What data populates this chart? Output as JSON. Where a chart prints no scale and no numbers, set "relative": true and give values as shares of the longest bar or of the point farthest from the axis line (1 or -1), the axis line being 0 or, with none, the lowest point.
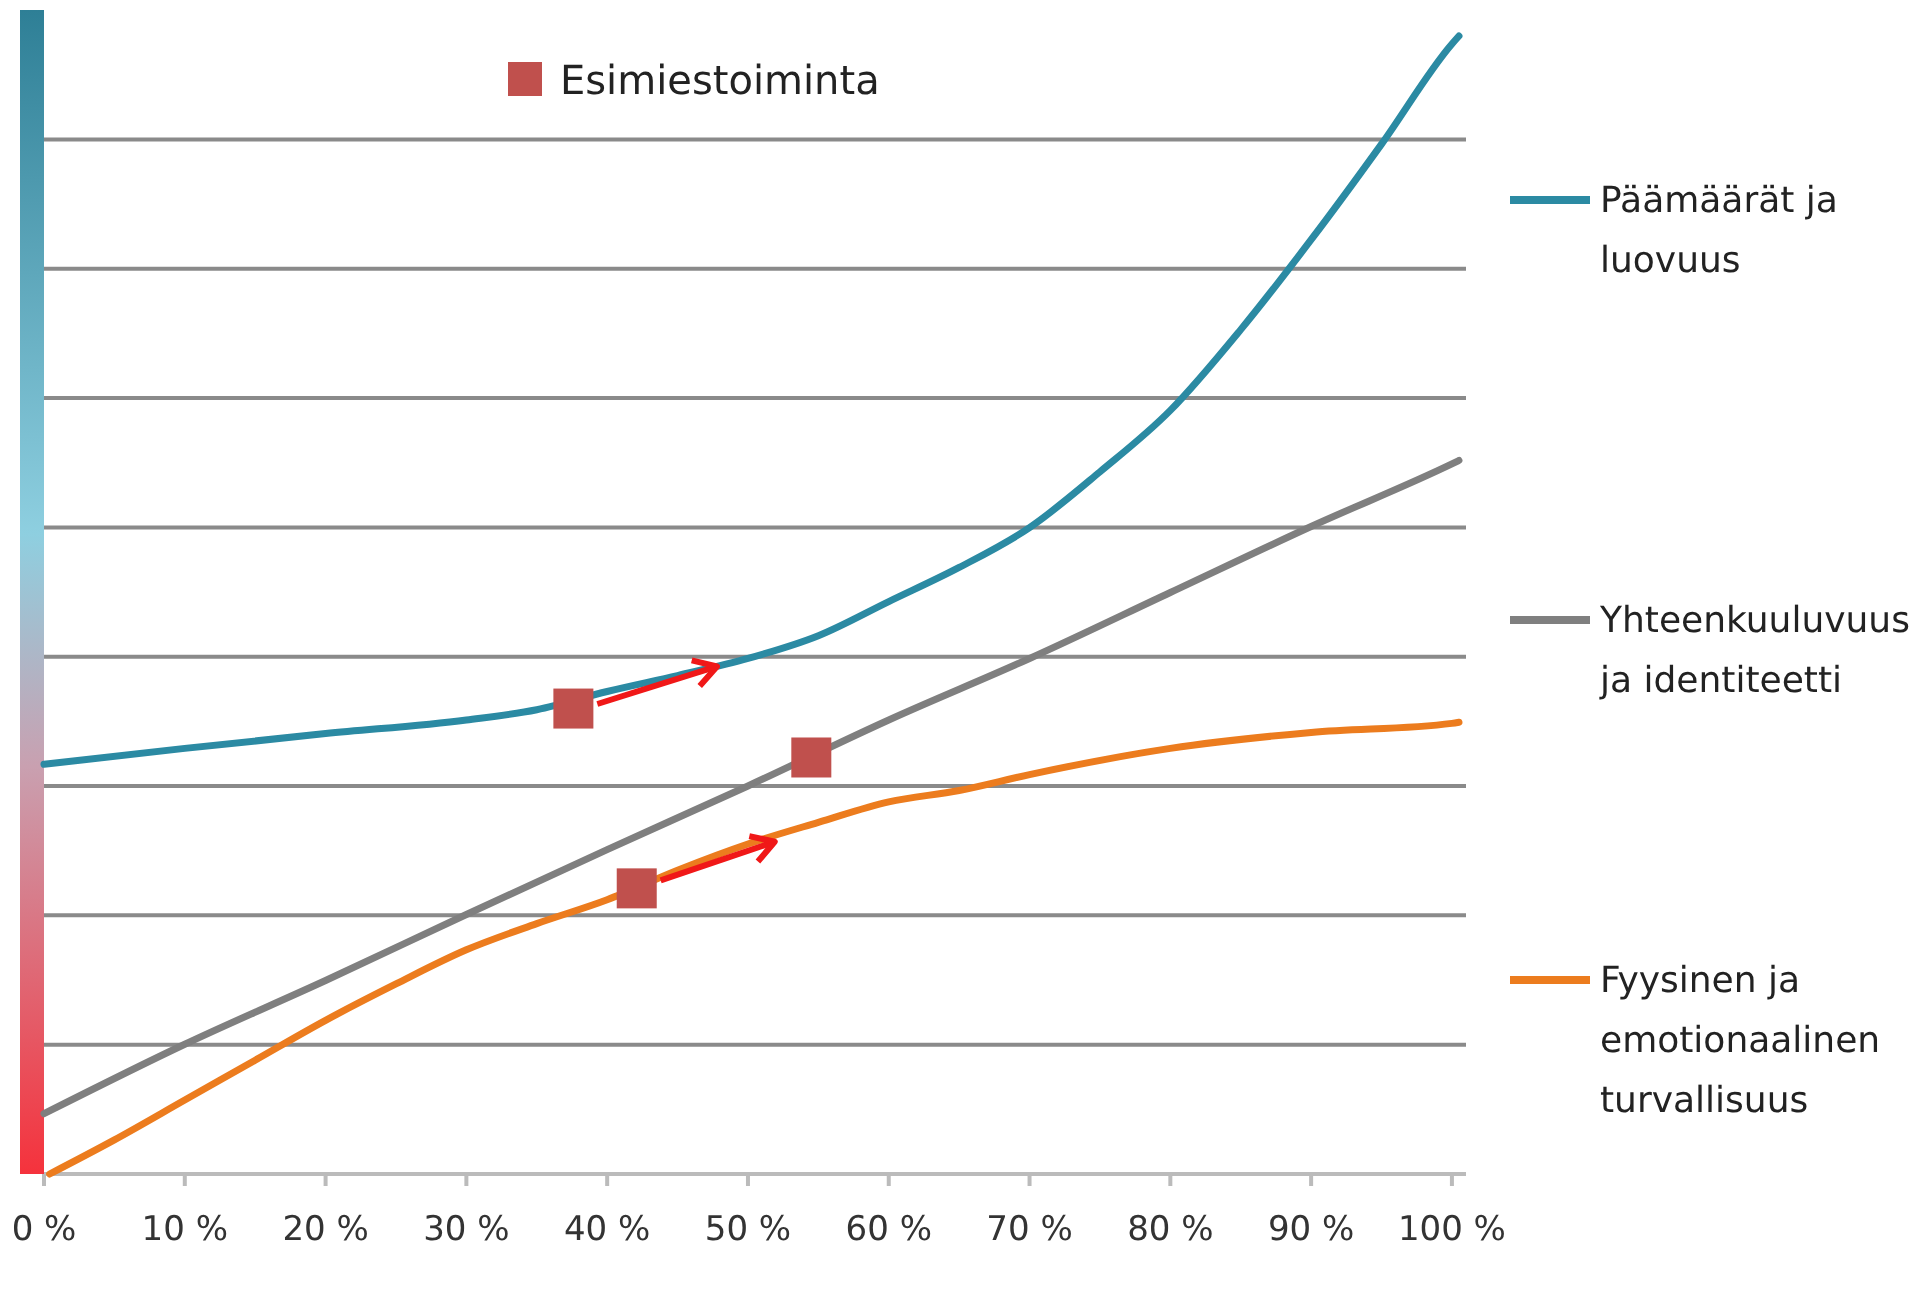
{
  "chart_data": {
    "type": "line",
    "relative": true,
    "grid": "y",
    "legend": "right",
    "marker": "none",
    "line_style": "solid",
    "xlim": [
      0,
      101
    ],
    "xticks": [
      {
        "value": 0,
        "label": "0 %"
      },
      {
        "value": 10,
        "label": "10 %"
      },
      {
        "value": 20,
        "label": "20 %"
      },
      {
        "value": 30,
        "label": "30 %"
      },
      {
        "value": 40,
        "label": "40 %"
      },
      {
        "value": 50,
        "label": "50 %"
      },
      {
        "value": 60,
        "label": "60 %"
      },
      {
        "value": 70,
        "label": "70 %"
      },
      {
        "value": 80,
        "label": "80 %"
      },
      {
        "value": 90,
        "label": "90 %"
      },
      {
        "value": 100,
        "label": "100 %"
      }
    ],
    "series": [
      {
        "name": "Päämäärät ja luovuus",
        "color": "#2b8aa3",
        "x": [
          0,
          10,
          20,
          30,
          35,
          40,
          45,
          50,
          55,
          60,
          65,
          70,
          75,
          80,
          85,
          90,
          95,
          100,
          100.5
        ],
        "values": [
          0.36,
          0.374,
          0.387,
          0.399,
          0.408,
          0.424,
          0.438,
          0.453,
          0.473,
          0.503,
          0.533,
          0.568,
          0.617,
          0.671,
          0.742,
          0.821,
          0.905,
          0.993,
          1
        ]
      },
      {
        "name": "Yhteenkuuluvuus ja identiteetti",
        "color": "#7f7f7f",
        "x": [
          0,
          10,
          20,
          30,
          40,
          50,
          60,
          70,
          80,
          90,
          100,
          100.5
        ],
        "values": [
          0.053,
          0.114,
          0.17,
          0.228,
          0.285,
          0.341,
          0.399,
          0.453,
          0.511,
          0.569,
          0.624,
          0.627
        ]
      },
      {
        "name": "Fyysinen ja emotionaalinen turvallisuus",
        "color": "#ec7c1e",
        "x": [
          0.4,
          5,
          10,
          15,
          20,
          25,
          30,
          35,
          40,
          45,
          50,
          55,
          60,
          65,
          70,
          80,
          90,
          100,
          100.5
        ],
        "values": [
          0,
          0.03,
          0.065,
          0.1,
          0.135,
          0.167,
          0.197,
          0.22,
          0.241,
          0.267,
          0.29,
          0.309,
          0.327,
          0.337,
          0.351,
          0.374,
          0.388,
          0.396,
          0.397
        ]
      },
      {
        "name": "Esimiestoiminta",
        "type": "scatter",
        "marker": "square",
        "color": "#c0504d",
        "x": [
          37.6,
          42.1,
          54.5
        ],
        "values": [
          0.409,
          0.251,
          0.366
        ]
      }
    ]
  }
}
